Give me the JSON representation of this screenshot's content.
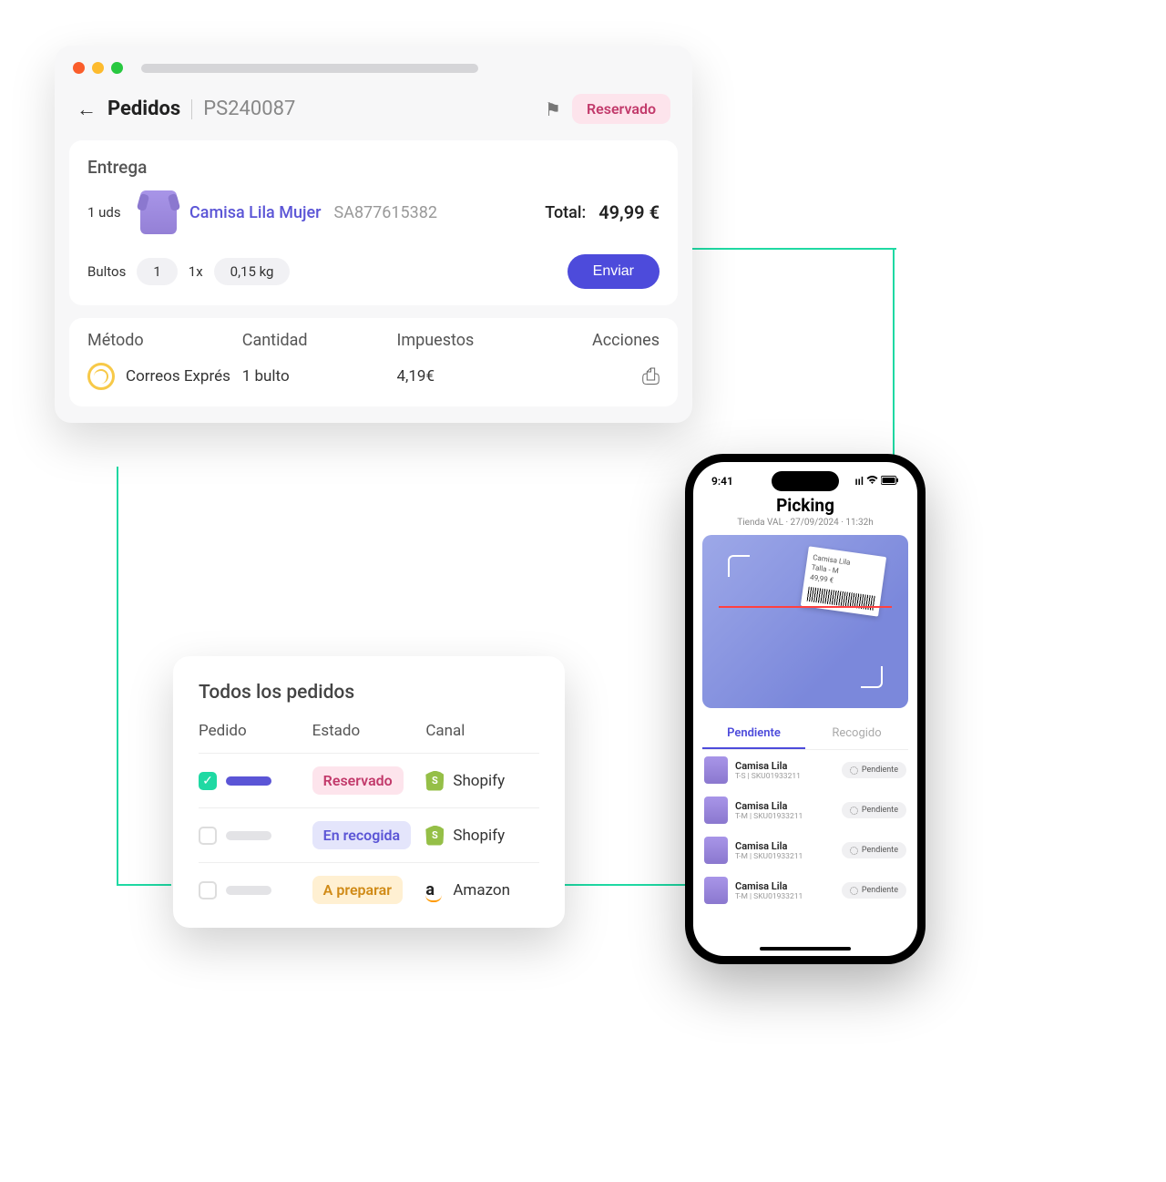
{
  "window": {
    "header": {
      "back_section": "Pedidos",
      "order_id": "PS240087",
      "status_badge": "Reservado"
    },
    "delivery": {
      "title": "Entrega",
      "units": "1 uds",
      "product_name": "Camisa Lila Mujer",
      "sku": "SA877615382",
      "total_label": "Total:",
      "total_value": "49,99 €",
      "packages_label": "Bultos",
      "packages_count": "1",
      "packages_mult": "1x",
      "weight": "0,15 kg",
      "send_button": "Enviar"
    },
    "shipping": {
      "col_method": "Método",
      "col_qty": "Cantidad",
      "col_tax": "Impuestos",
      "col_actions": "Acciones",
      "carrier": "Correos Exprés",
      "qty": "1 bulto",
      "tax": "4,19€"
    }
  },
  "orders": {
    "title": "Todos los pedidos",
    "col_order": "Pedido",
    "col_status": "Estado",
    "col_channel": "Canal",
    "rows": [
      {
        "checked": true,
        "status": "Reservado",
        "status_class": "b-pink",
        "channel": "Shopify",
        "channel_icon": "shopify"
      },
      {
        "checked": false,
        "status": "En recogida",
        "status_class": "b-blue",
        "channel": "Shopify",
        "channel_icon": "shopify"
      },
      {
        "checked": false,
        "status": "A preparar",
        "status_class": "b-yellow",
        "channel": "Amazon",
        "channel_icon": "amazon"
      }
    ]
  },
  "phone": {
    "time": "9:41",
    "title": "Picking",
    "subtitle": "Tienda VAL · 27/09/2024 · 11:32h",
    "label": {
      "l1": "Camisa Lila",
      "l2": "Talla - M",
      "l3": "49,99 €"
    },
    "tabs": {
      "pending": "Pendiente",
      "collected": "Recogido"
    },
    "items": [
      {
        "name": "Camisa Lila",
        "meta": "T-S | SKU01933211",
        "badge": "Pendiente"
      },
      {
        "name": "Camisa Lila",
        "meta": "T-M | SKU01933211",
        "badge": "Pendiente"
      },
      {
        "name": "Camisa Lila",
        "meta": "T-M | SKU01933211",
        "badge": "Pendiente"
      },
      {
        "name": "Camisa Lila",
        "meta": "T-M | SKU01933211",
        "badge": "Pendiente"
      }
    ]
  }
}
